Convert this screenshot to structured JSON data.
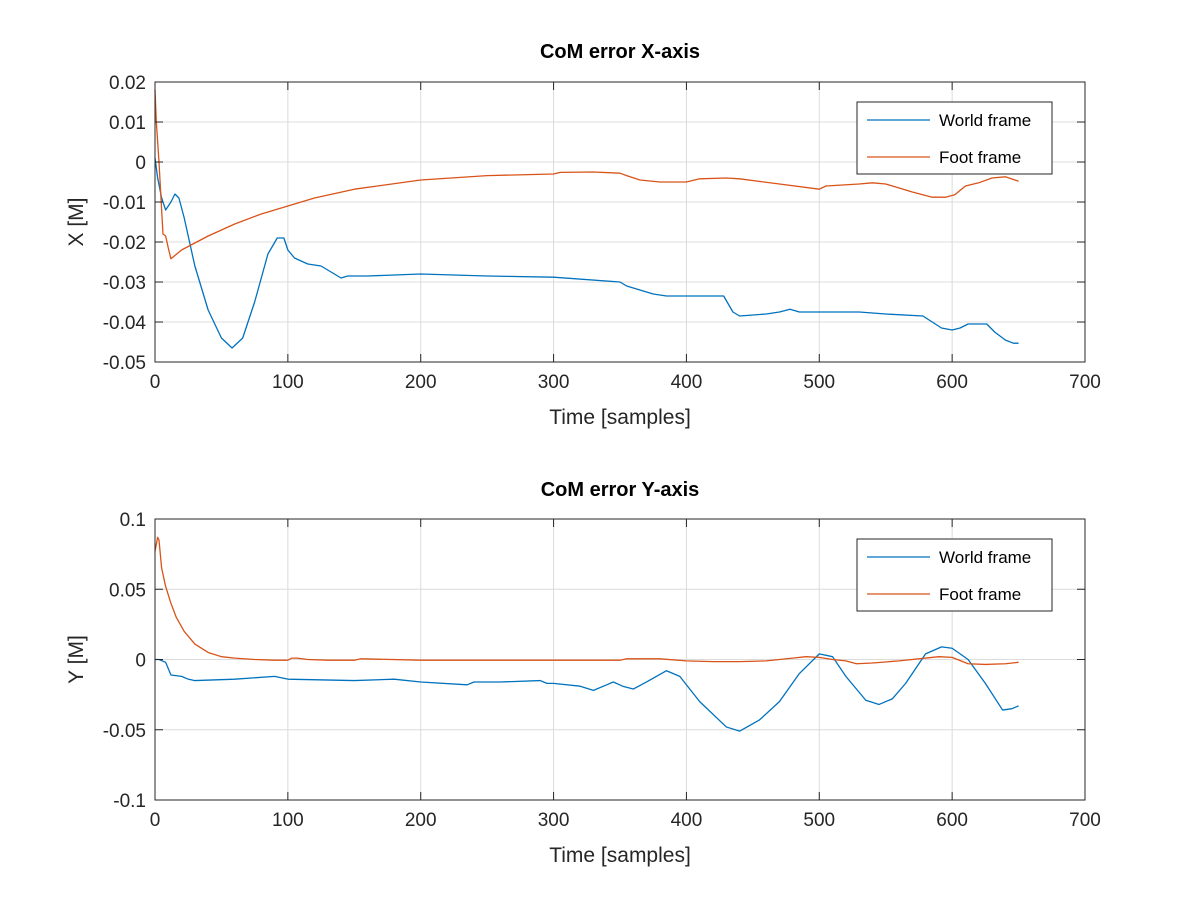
{
  "figure": {
    "background": "#ffffff"
  },
  "chart_data": [
    {
      "type": "line",
      "title": "CoM error X-axis",
      "xlabel": "Time [samples]",
      "ylabel": "X [M]",
      "xlim": [
        0,
        700
      ],
      "ylim": [
        -0.05,
        0.02
      ],
      "xticks": [
        0,
        100,
        200,
        300,
        400,
        500,
        600,
        700
      ],
      "yticks": [
        -0.05,
        -0.04,
        -0.03,
        -0.02,
        -0.01,
        0,
        0.01,
        0.02
      ],
      "ytick_labels": [
        "-0.05",
        "-0.04",
        "-0.03",
        "-0.02",
        "-0.01",
        "0",
        "0.01",
        "0.02"
      ],
      "grid": true,
      "legend": "top-right",
      "series": [
        {
          "name": "World frame",
          "color": "#0072bd",
          "x": [
            0,
            2,
            5,
            8,
            12,
            15,
            18,
            22,
            30,
            40,
            50,
            58,
            66,
            75,
            85,
            92,
            97,
            100,
            105,
            115,
            125,
            135,
            140,
            145,
            150,
            160,
            200,
            250,
            300,
            350,
            355,
            365,
            375,
            385,
            400,
            420,
            428,
            435,
            440,
            460,
            470,
            478,
            485,
            500,
            530,
            550,
            578,
            585,
            592,
            600,
            606,
            612,
            620,
            626,
            632,
            640,
            646,
            650
          ],
          "y": [
            0.001,
            -0.004,
            -0.009,
            -0.012,
            -0.01,
            -0.008,
            -0.009,
            -0.014,
            -0.026,
            -0.037,
            -0.044,
            -0.0465,
            -0.044,
            -0.035,
            -0.023,
            -0.019,
            -0.019,
            -0.022,
            -0.024,
            -0.0255,
            -0.026,
            -0.028,
            -0.029,
            -0.0285,
            -0.0285,
            -0.0285,
            -0.028,
            -0.0285,
            -0.0288,
            -0.03,
            -0.031,
            -0.032,
            -0.033,
            -0.0335,
            -0.0335,
            -0.0335,
            -0.0335,
            -0.0375,
            -0.0385,
            -0.038,
            -0.0375,
            -0.0368,
            -0.0375,
            -0.0375,
            -0.0375,
            -0.038,
            -0.0385,
            -0.04,
            -0.0415,
            -0.042,
            -0.0415,
            -0.0405,
            -0.0405,
            -0.0405,
            -0.0425,
            -0.0445,
            -0.0453,
            -0.0453
          ]
        },
        {
          "name": "Foot frame",
          "color": "#d95319",
          "x": [
            0,
            1,
            3,
            5,
            6,
            8,
            10,
            12,
            20,
            40,
            60,
            80,
            100,
            120,
            150,
            200,
            250,
            300,
            305,
            330,
            350,
            355,
            365,
            380,
            400,
            410,
            430,
            440,
            470,
            500,
            505,
            530,
            540,
            550,
            570,
            585,
            595,
            602,
            610,
            620,
            630,
            640,
            650
          ],
          "y": [
            0.018,
            0.01,
            0.0,
            -0.012,
            -0.018,
            -0.0185,
            -0.0215,
            -0.0242,
            -0.022,
            -0.0185,
            -0.0155,
            -0.013,
            -0.011,
            -0.009,
            -0.0068,
            -0.0045,
            -0.0034,
            -0.003,
            -0.0026,
            -0.0025,
            -0.0028,
            -0.0034,
            -0.0045,
            -0.005,
            -0.005,
            -0.0042,
            -0.004,
            -0.0042,
            -0.0055,
            -0.0068,
            -0.006,
            -0.0055,
            -0.0052,
            -0.0055,
            -0.0075,
            -0.0088,
            -0.0088,
            -0.0082,
            -0.006,
            -0.0052,
            -0.004,
            -0.0037,
            -0.0048
          ]
        }
      ]
    },
    {
      "type": "line",
      "title": "CoM error Y-axis",
      "xlabel": "Time [samples]",
      "ylabel": "Y [M]",
      "xlim": [
        0,
        700
      ],
      "ylim": [
        -0.1,
        0.1
      ],
      "xticks": [
        0,
        100,
        200,
        300,
        400,
        500,
        600,
        700
      ],
      "yticks": [
        -0.1,
        -0.05,
        0,
        0.05,
        0.1
      ],
      "ytick_labels": [
        "-0.1",
        "-0.05",
        "0",
        "0.05",
        "0.1"
      ],
      "grid": true,
      "legend": "top-right",
      "series": [
        {
          "name": "World frame",
          "color": "#0072bd",
          "x": [
            0,
            3,
            8,
            12,
            20,
            25,
            30,
            60,
            90,
            100,
            150,
            180,
            200,
            235,
            240,
            260,
            290,
            295,
            300,
            320,
            330,
            340,
            345,
            352,
            360,
            370,
            385,
            395,
            410,
            430,
            440,
            455,
            470,
            485,
            500,
            510,
            520,
            535,
            545,
            555,
            565,
            580,
            592,
            600,
            612,
            625,
            638,
            645,
            650
          ],
          "y": [
            0,
            0,
            -0.002,
            -0.011,
            -0.012,
            -0.014,
            -0.015,
            -0.014,
            -0.012,
            -0.014,
            -0.015,
            -0.014,
            -0.016,
            -0.018,
            -0.016,
            -0.016,
            -0.015,
            -0.017,
            -0.017,
            -0.019,
            -0.022,
            -0.018,
            -0.016,
            -0.019,
            -0.021,
            -0.016,
            -0.008,
            -0.012,
            -0.03,
            -0.048,
            -0.051,
            -0.043,
            -0.03,
            -0.01,
            0.004,
            0.002,
            -0.012,
            -0.029,
            -0.032,
            -0.028,
            -0.017,
            0.004,
            0.009,
            0.008,
            0,
            -0.017,
            -0.036,
            -0.035,
            -0.033
          ]
        },
        {
          "name": "Foot frame",
          "color": "#d95319",
          "x": [
            0,
            2,
            3,
            5,
            8,
            12,
            16,
            22,
            30,
            40,
            50,
            60,
            75,
            90,
            100,
            103,
            107,
            115,
            130,
            150,
            155,
            200,
            250,
            300,
            350,
            355,
            380,
            400,
            420,
            440,
            460,
            480,
            490,
            500,
            510,
            520,
            528,
            540,
            560,
            590,
            600,
            612,
            625,
            640,
            650
          ],
          "y": [
            0.077,
            0.087,
            0.085,
            0.065,
            0.052,
            0.04,
            0.03,
            0.02,
            0.011,
            0.005,
            0.002,
            0.001,
            0.0,
            -0.0005,
            -0.0005,
            0.001,
            0.001,
            0.0,
            -0.0005,
            -0.0005,
            0.0005,
            -0.0005,
            -0.0005,
            -0.0005,
            -0.0005,
            0.0005,
            0.0005,
            -0.001,
            -0.0015,
            -0.0015,
            -0.001,
            0.001,
            0.002,
            0.0015,
            0.0,
            -0.001,
            -0.003,
            -0.0025,
            -0.001,
            0.002,
            0.0015,
            -0.003,
            -0.0035,
            -0.003,
            -0.002
          ]
        }
      ]
    }
  ]
}
